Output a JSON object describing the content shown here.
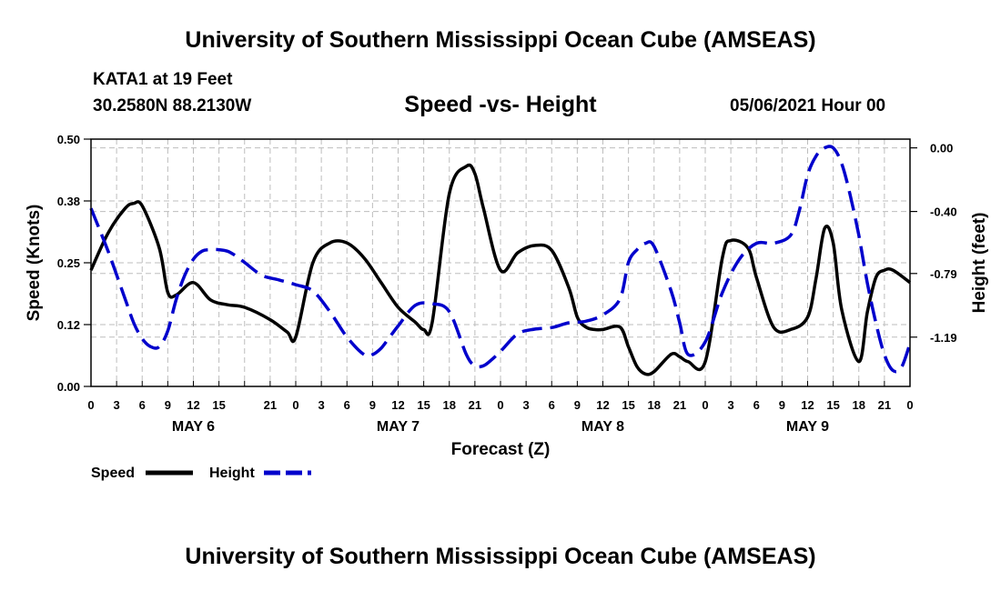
{
  "header": {
    "title": "University of Southern Mississippi Ocean Cube (AMSEAS)",
    "station": "KATA1 at 19 Feet",
    "coords": "30.2580N  88.2130W",
    "date": "05/06/2021 Hour 00"
  },
  "footer": {
    "title": "University of Southern Mississippi Ocean Cube (AMSEAS)"
  },
  "chart_data": {
    "type": "line",
    "title": "Speed -vs- Height",
    "xlabel": "Forecast (Z)",
    "ylabel_left": "Speed (Knots)",
    "ylabel_right": "Height (feet)",
    "x_range_hours": [
      0,
      96
    ],
    "y_left_range": [
      0,
      0.5
    ],
    "y_left_ticks": [
      0.0,
      0.125,
      0.25,
      0.375,
      0.5
    ],
    "y_left_tick_labels": [
      "0.00",
      "0.12",
      "0.25",
      "0.38",
      "0.50"
    ],
    "y_right_range": [
      -1.5,
      0.055
    ],
    "y_right_ticks": [
      0.0,
      -0.4,
      -0.79,
      -1.19
    ],
    "y_right_tick_labels": [
      "0.00",
      "-0.40",
      "-0.79",
      "-1.19"
    ],
    "x_tick_labels": [
      "0",
      "3",
      "6",
      "9",
      "12",
      "15",
      "21",
      "0",
      "3",
      "6",
      "9",
      "12",
      "15",
      "18",
      "21",
      "0",
      "3",
      "6",
      "9",
      "12",
      "15",
      "18",
      "21",
      "0",
      "3",
      "6",
      "9",
      "12",
      "15",
      "18",
      "21",
      "0"
    ],
    "x_tick_hours": [
      0,
      3,
      6,
      9,
      12,
      15,
      21,
      24,
      27,
      30,
      33,
      36,
      39,
      42,
      45,
      48,
      51,
      54,
      57,
      60,
      63,
      66,
      69,
      72,
      75,
      78,
      81,
      84,
      87,
      90,
      93,
      96
    ],
    "day_labels": [
      {
        "label": "MAY 6",
        "hour": 12
      },
      {
        "label": "MAY 7",
        "hour": 36
      },
      {
        "label": "MAY 8",
        "hour": 60
      },
      {
        "label": "MAY 9",
        "hour": 84
      }
    ],
    "grid": true,
    "legend_position": "bottom-left",
    "series": [
      {
        "name": "Speed",
        "axis": "left",
        "color": "#000000",
        "style": "solid",
        "x": [
          0,
          2,
          4,
          5,
          6,
          8,
          9,
          10,
          12,
          14,
          16,
          18,
          21,
          23,
          24,
          26,
          28,
          30,
          32,
          34,
          36,
          38,
          39,
          40,
          42,
          44,
          45,
          46,
          48,
          50,
          52,
          54,
          56,
          57,
          58,
          59,
          60,
          62,
          63,
          64,
          65,
          66,
          68,
          69,
          70,
          72,
          74,
          75,
          77,
          78,
          80,
          82,
          84,
          85,
          86,
          87,
          88,
          90,
          91,
          92,
          93,
          94,
          96
        ],
        "values": [
          0.235,
          0.31,
          0.36,
          0.37,
          0.365,
          0.28,
          0.19,
          0.185,
          0.21,
          0.175,
          0.165,
          0.16,
          0.135,
          0.11,
          0.1,
          0.25,
          0.29,
          0.29,
          0.26,
          0.21,
          0.16,
          0.13,
          0.115,
          0.13,
          0.39,
          0.445,
          0.43,
          0.36,
          0.235,
          0.27,
          0.285,
          0.275,
          0.2,
          0.14,
          0.12,
          0.115,
          0.115,
          0.12,
          0.08,
          0.04,
          0.025,
          0.03,
          0.065,
          0.06,
          0.05,
          0.05,
          0.26,
          0.295,
          0.28,
          0.22,
          0.12,
          0.115,
          0.14,
          0.22,
          0.32,
          0.29,
          0.155,
          0.05,
          0.15,
          0.22,
          0.235,
          0.235,
          0.21
        ]
      },
      {
        "name": "Height",
        "axis": "right",
        "color": "#0000cc",
        "style": "dashed",
        "x": [
          0,
          2,
          4,
          5,
          6,
          7,
          8,
          9,
          10,
          11,
          12,
          13,
          14,
          15,
          16,
          17,
          18,
          20,
          22,
          24,
          26,
          28,
          30,
          32,
          33,
          34,
          35,
          36,
          38,
          40,
          42,
          44,
          45,
          46,
          47,
          48,
          50,
          52,
          54,
          56,
          58,
          60,
          62,
          63,
          64,
          65,
          66,
          68,
          69,
          70,
          72,
          74,
          76,
          78,
          80,
          82,
          83,
          84,
          85,
          86,
          87,
          88,
          89,
          90,
          91,
          92,
          93,
          94,
          95,
          96
        ],
        "values": [
          -0.38,
          -0.65,
          -0.95,
          -1.1,
          -1.2,
          -1.25,
          -1.25,
          -1.15,
          -0.95,
          -0.8,
          -0.7,
          -0.65,
          -0.64,
          -0.64,
          -0.65,
          -0.68,
          -0.72,
          -0.8,
          -0.83,
          -0.86,
          -0.9,
          -1.03,
          -1.19,
          -1.3,
          -1.3,
          -1.26,
          -1.19,
          -1.12,
          -0.99,
          -0.98,
          -1.03,
          -1.3,
          -1.37,
          -1.37,
          -1.33,
          -1.28,
          -1.17,
          -1.14,
          -1.13,
          -1.1,
          -1.09,
          -1.05,
          -0.95,
          -0.72,
          -0.64,
          -0.6,
          -0.62,
          -0.9,
          -1.1,
          -1.3,
          -1.22,
          -0.91,
          -0.7,
          -0.6,
          -0.6,
          -0.55,
          -0.4,
          -0.17,
          -0.05,
          0.0,
          0.0,
          -0.1,
          -0.3,
          -0.55,
          -0.85,
          -1.1,
          -1.3,
          -1.4,
          -1.38,
          -1.23
        ]
      }
    ]
  }
}
